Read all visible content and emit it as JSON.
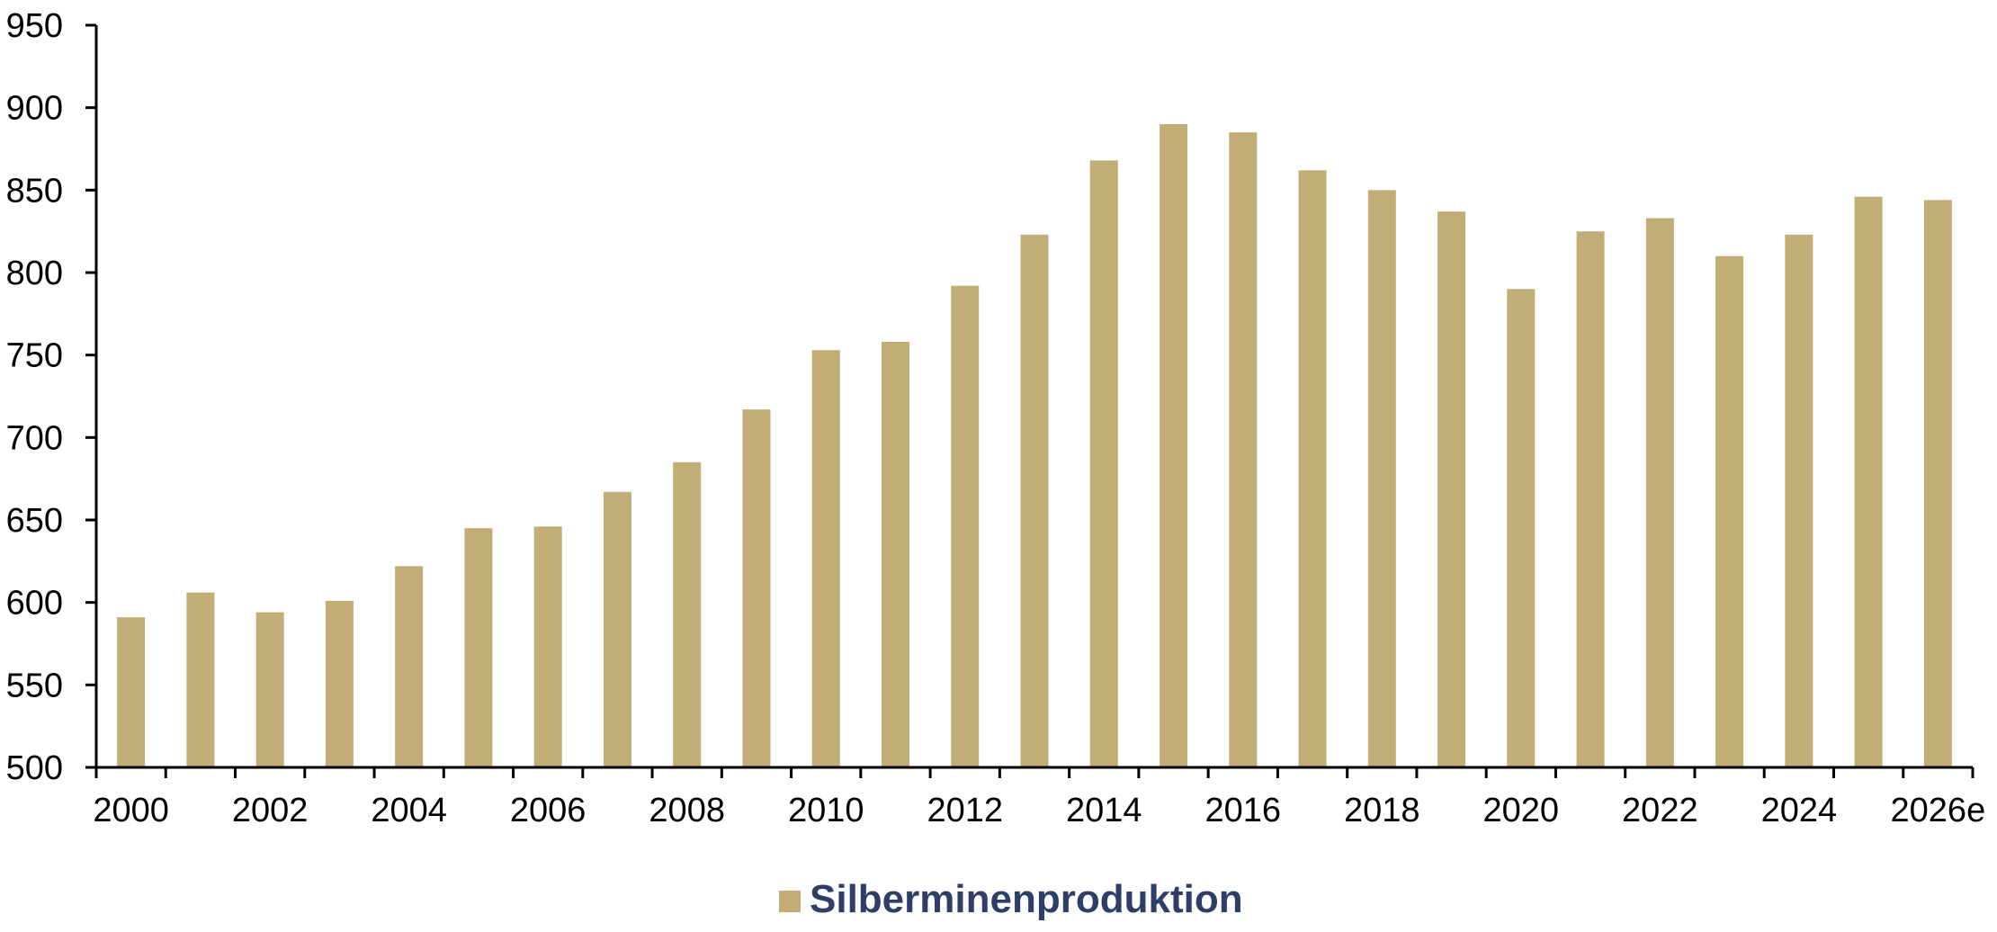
{
  "colors": {
    "bar": "#c2ad76",
    "axis": "#000000",
    "legend_text": "#2e3e68"
  },
  "chart_data": {
    "type": "bar",
    "title": "",
    "xlabel": "",
    "ylabel": "",
    "ylim": [
      500,
      950
    ],
    "yticks": [
      500,
      550,
      600,
      650,
      700,
      750,
      800,
      850,
      900,
      950
    ],
    "grid": false,
    "legend_position": "bottom-center",
    "categories": [
      "2000",
      "2001",
      "2002",
      "2003",
      "2004",
      "2005",
      "2006",
      "2007",
      "2008",
      "2009",
      "2010",
      "2011",
      "2012",
      "2013",
      "2014",
      "2015",
      "2016",
      "2017",
      "2018",
      "2019",
      "2020",
      "2021",
      "2022",
      "2023",
      "2024",
      "2025",
      "2026e"
    ],
    "x_tick_labels": [
      "2000",
      "2002",
      "2004",
      "2006",
      "2008",
      "2010",
      "2012",
      "2014",
      "2016",
      "2018",
      "2020",
      "2022",
      "2024",
      "2026e"
    ],
    "series": [
      {
        "name": "Silberminenproduktion",
        "values": [
          591,
          606,
          594,
          601,
          622,
          645,
          646,
          667,
          685,
          717,
          753,
          758,
          792,
          823,
          868,
          890,
          885,
          862,
          850,
          837,
          790,
          825,
          833,
          810,
          823,
          846,
          844
        ]
      }
    ]
  }
}
